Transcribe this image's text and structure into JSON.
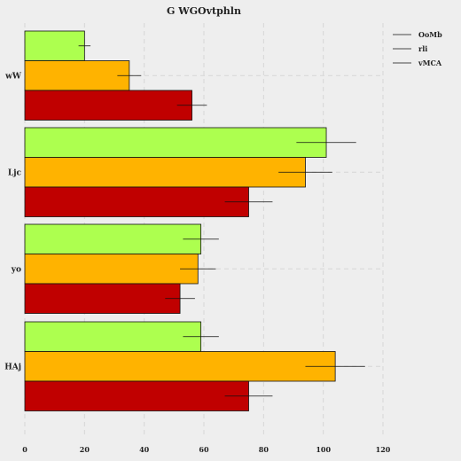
{
  "chart_data": {
    "type": "bar",
    "orientation": "horizontal",
    "title": "G WGOvtphln",
    "xlabel": "",
    "ylabel": "",
    "categories": [
      "wW",
      "Ljc",
      "yo",
      "HAj"
    ],
    "series": [
      {
        "name": "OoMb",
        "color": "#adff4f",
        "values": [
          20,
          101,
          59,
          59
        ],
        "errors": [
          2,
          10,
          6,
          6
        ]
      },
      {
        "name": "rli",
        "color": "#ffb300",
        "values": [
          35,
          94,
          58,
          104
        ],
        "errors": [
          4,
          9,
          6,
          10
        ]
      },
      {
        "name": "vMCA",
        "color": "#c00000",
        "values": [
          56,
          75,
          52,
          75
        ],
        "errors": [
          5,
          8,
          5,
          8
        ]
      }
    ],
    "xlim": [
      0,
      120
    ],
    "xticks": [
      0,
      20,
      40,
      60,
      80,
      100,
      120
    ],
    "grid": true,
    "legend_position": "top-right"
  }
}
